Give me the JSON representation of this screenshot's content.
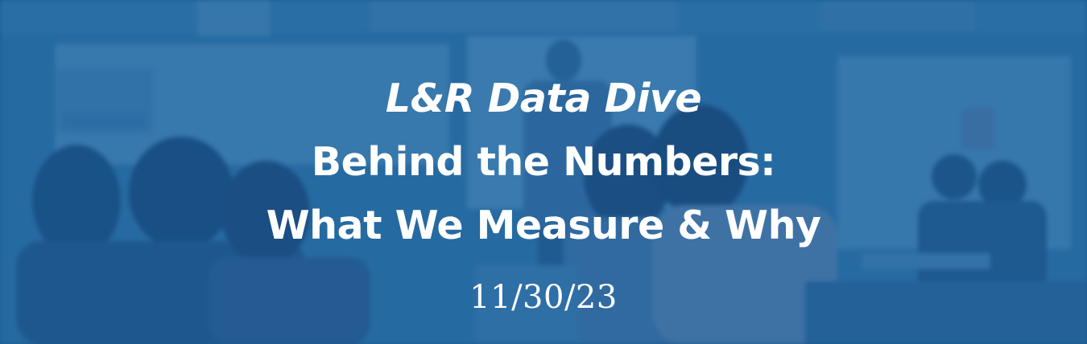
{
  "banner": {
    "title_line_1": "L&R Data Dive",
    "title_line_2": "Behind the Numbers:",
    "title_line_3": "What We Measure & Why",
    "date": "11/30/23"
  },
  "colors": {
    "overlay_blue": "#1d5f92",
    "text": "#ffffff"
  }
}
